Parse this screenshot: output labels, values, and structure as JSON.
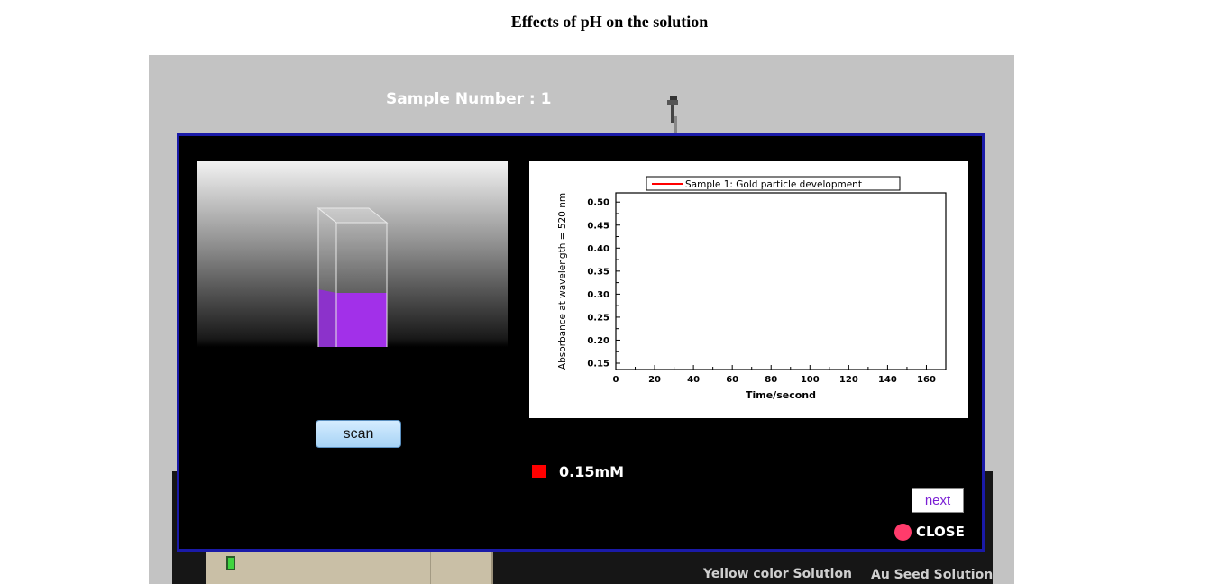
{
  "page": {
    "title": "Effects of pH on the solution"
  },
  "stage": {
    "sample_number": "Sample Number : 1",
    "bench_labels": {
      "yellow": "Yellow color Solution",
      "seed": "Au Seed Solution"
    }
  },
  "modal": {
    "scan_label": "scan",
    "concentration": {
      "label": "0.15mM",
      "color": "#ff0000"
    },
    "next_label": "next",
    "close_label": "CLOSE",
    "cuvette": {
      "liquid_color": "#9b1fe8",
      "fill_fraction": 0.45
    }
  },
  "chart_data": {
    "type": "line",
    "legend": "Sample 1: Gold particle development",
    "xlabel": "Time/second",
    "ylabel": "Absorbance at wavelength = 520 nm",
    "xlim": [
      0,
      170
    ],
    "ylim": [
      0.15,
      0.52
    ],
    "xticks": [
      "0",
      "20",
      "40",
      "60",
      "80",
      "100",
      "120",
      "140",
      "160"
    ],
    "yticks": [
      "0.15",
      "0.20",
      "0.25",
      "0.30",
      "0.35",
      "0.40",
      "0.45",
      "0.50"
    ],
    "series": [
      {
        "name": "Sample 1: Gold particle development",
        "color": "#ff0000",
        "x": [],
        "y": []
      }
    ],
    "grid": false,
    "legend_position": "top-center"
  }
}
